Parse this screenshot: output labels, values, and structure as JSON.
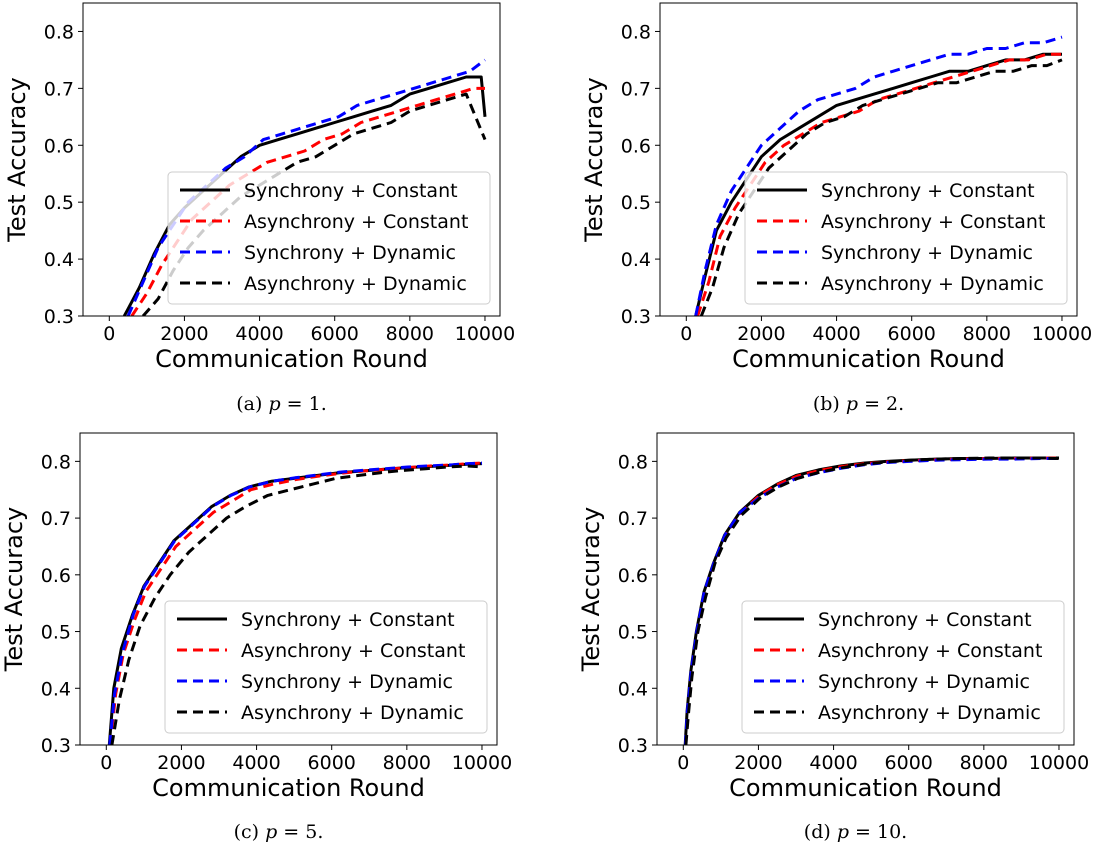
{
  "chart_data": [
    {
      "type": "line",
      "caption": "(a) p = 1.",
      "caption_prefix": "(a)",
      "caption_var": "p",
      "caption_eq": "= 1.",
      "xlabel": "Communication Round",
      "ylabel": "Test Accuracy",
      "xlim": [
        -700,
        10400
      ],
      "ylim": [
        0.3,
        0.85
      ],
      "xticks": [
        0,
        2000,
        4000,
        6000,
        8000,
        10000
      ],
      "yticks": [
        0.3,
        0.4,
        0.5,
        0.6,
        0.7,
        0.8
      ],
      "xtick_labels": [
        "0",
        "2000",
        "4000",
        "6000",
        "8000",
        "10000"
      ],
      "ytick_labels": [
        "0.3",
        "0.4",
        "0.5",
        "0.6",
        "0.7",
        "0.8"
      ],
      "legend_position": "lower-right",
      "series": [
        {
          "name": "Synchrony + Constant",
          "color": "#000000",
          "dash": "solid",
          "x": [
            400,
            800,
            1200,
            1600,
            2000,
            2500,
            3000,
            3500,
            4000,
            4500,
            5000,
            5500,
            6000,
            6500,
            7000,
            7500,
            8000,
            8500,
            9000,
            9500,
            9900,
            10000
          ],
          "y": [
            0.3,
            0.35,
            0.41,
            0.46,
            0.49,
            0.52,
            0.55,
            0.58,
            0.6,
            0.61,
            0.62,
            0.63,
            0.64,
            0.65,
            0.66,
            0.67,
            0.69,
            0.7,
            0.71,
            0.72,
            0.72,
            0.65
          ]
        },
        {
          "name": "Asynchrony + Constant",
          "color": "#ff0000",
          "dash": "dashed",
          "x": [
            600,
            1000,
            1400,
            1800,
            2200,
            2700,
            3200,
            3700,
            4200,
            4700,
            5200,
            5700,
            6200,
            6700,
            7200,
            7700,
            8200,
            8700,
            9200,
            9700,
            10000
          ],
          "y": [
            0.3,
            0.34,
            0.39,
            0.43,
            0.47,
            0.5,
            0.53,
            0.55,
            0.57,
            0.58,
            0.59,
            0.61,
            0.62,
            0.64,
            0.65,
            0.66,
            0.67,
            0.68,
            0.69,
            0.7,
            0.7
          ]
        },
        {
          "name": "Synchrony + Dynamic",
          "color": "#0000ff",
          "dash": "dashed",
          "x": [
            500,
            900,
            1300,
            1700,
            2100,
            2600,
            3100,
            3600,
            4100,
            4600,
            5100,
            5600,
            6100,
            6600,
            7100,
            7600,
            8100,
            8600,
            9100,
            9600,
            10000
          ],
          "y": [
            0.3,
            0.36,
            0.42,
            0.46,
            0.5,
            0.53,
            0.56,
            0.58,
            0.61,
            0.62,
            0.63,
            0.64,
            0.65,
            0.67,
            0.68,
            0.69,
            0.7,
            0.71,
            0.72,
            0.73,
            0.75
          ]
        },
        {
          "name": "Asynchrony + Dynamic",
          "color": "#000000",
          "dash": "dashed",
          "x": [
            900,
            1300,
            1700,
            2100,
            2500,
            3000,
            3500,
            4000,
            4500,
            5000,
            5500,
            6000,
            6500,
            7000,
            7500,
            8000,
            8500,
            9000,
            9500,
            10000
          ],
          "y": [
            0.3,
            0.33,
            0.38,
            0.42,
            0.45,
            0.48,
            0.51,
            0.53,
            0.55,
            0.57,
            0.58,
            0.6,
            0.62,
            0.63,
            0.64,
            0.66,
            0.67,
            0.68,
            0.69,
            0.61
          ]
        }
      ]
    },
    {
      "type": "line",
      "caption": "(b) p = 2.",
      "caption_prefix": "(b)",
      "caption_var": "p",
      "caption_eq": "= 2.",
      "xlabel": "Communication Round",
      "ylabel": "Test Accuracy",
      "xlim": [
        -700,
        10400
      ],
      "ylim": [
        0.3,
        0.85
      ],
      "xticks": [
        0,
        2000,
        4000,
        6000,
        8000,
        10000
      ],
      "yticks": [
        0.3,
        0.4,
        0.5,
        0.6,
        0.7,
        0.8
      ],
      "xtick_labels": [
        "0",
        "2000",
        "4000",
        "6000",
        "8000",
        "10000"
      ],
      "ytick_labels": [
        "0.3",
        "0.4",
        "0.5",
        "0.6",
        "0.7",
        "0.8"
      ],
      "legend_position": "lower-right",
      "series": [
        {
          "name": "Synchrony + Constant",
          "color": "#000000",
          "dash": "solid",
          "x": [
            250,
            500,
            800,
            1200,
            1600,
            2000,
            2500,
            3000,
            3500,
            4000,
            4500,
            5000,
            5500,
            6000,
            6500,
            7000,
            7500,
            8000,
            8500,
            9000,
            9500,
            10000
          ],
          "y": [
            0.3,
            0.37,
            0.45,
            0.5,
            0.54,
            0.58,
            0.61,
            0.63,
            0.65,
            0.67,
            0.68,
            0.69,
            0.7,
            0.71,
            0.72,
            0.73,
            0.73,
            0.74,
            0.75,
            0.75,
            0.76,
            0.76
          ]
        },
        {
          "name": "Asynchrony + Constant",
          "color": "#ff0000",
          "dash": "dashed",
          "x": [
            300,
            600,
            900,
            1300,
            1700,
            2100,
            2600,
            3100,
            3600,
            4100,
            4600,
            5100,
            5600,
            6100,
            6600,
            7100,
            7600,
            8100,
            8600,
            9100,
            9600,
            10000
          ],
          "y": [
            0.3,
            0.36,
            0.44,
            0.49,
            0.53,
            0.57,
            0.6,
            0.62,
            0.64,
            0.65,
            0.66,
            0.68,
            0.69,
            0.7,
            0.71,
            0.72,
            0.73,
            0.74,
            0.75,
            0.75,
            0.76,
            0.76
          ]
        },
        {
          "name": "Synchrony + Dynamic",
          "color": "#0000ff",
          "dash": "dashed",
          "x": [
            250,
            500,
            800,
            1200,
            1600,
            2000,
            2500,
            3000,
            3500,
            4000,
            4500,
            5000,
            5500,
            6000,
            6500,
            7000,
            7500,
            8000,
            8500,
            9000,
            9500,
            10000
          ],
          "y": [
            0.3,
            0.38,
            0.46,
            0.52,
            0.56,
            0.6,
            0.63,
            0.66,
            0.68,
            0.69,
            0.7,
            0.72,
            0.73,
            0.74,
            0.75,
            0.76,
            0.76,
            0.77,
            0.77,
            0.78,
            0.78,
            0.79
          ]
        },
        {
          "name": "Asynchrony + Dynamic",
          "color": "#000000",
          "dash": "dashed",
          "x": [
            400,
            700,
            1000,
            1400,
            1800,
            2200,
            2700,
            3200,
            3700,
            4200,
            4700,
            5200,
            5700,
            6200,
            6700,
            7200,
            7700,
            8200,
            8700,
            9200,
            9600,
            10000
          ],
          "y": [
            0.3,
            0.35,
            0.42,
            0.48,
            0.52,
            0.56,
            0.59,
            0.62,
            0.64,
            0.65,
            0.67,
            0.68,
            0.69,
            0.7,
            0.71,
            0.71,
            0.72,
            0.73,
            0.73,
            0.74,
            0.74,
            0.75
          ]
        }
      ]
    },
    {
      "type": "line",
      "caption": "(c) p = 5.",
      "caption_prefix": "(c)",
      "caption_var": "p",
      "caption_eq": "= 5.",
      "xlabel": "Communication Round",
      "ylabel": "Test Accuracy",
      "xlim": [
        -700,
        10400
      ],
      "ylim": [
        0.3,
        0.85
      ],
      "xticks": [
        0,
        2000,
        4000,
        6000,
        8000,
        10000
      ],
      "yticks": [
        0.3,
        0.4,
        0.5,
        0.6,
        0.7,
        0.8
      ],
      "xtick_labels": [
        "0",
        "2000",
        "4000",
        "6000",
        "8000",
        "10000"
      ],
      "ytick_labels": [
        "0.3",
        "0.4",
        "0.5",
        "0.6",
        "0.7",
        "0.8"
      ],
      "legend_position": "lower-right",
      "series": [
        {
          "name": "Synchrony + Constant",
          "color": "#000000",
          "dash": "solid",
          "x": [
            80,
            200,
            400,
            700,
            1000,
            1400,
            1800,
            2300,
            2800,
            3300,
            3800,
            4400,
            5000,
            5600,
            6200,
            6800,
            7400,
            8000,
            8600,
            9200,
            9600,
            10000
          ],
          "y": [
            0.3,
            0.4,
            0.47,
            0.53,
            0.58,
            0.62,
            0.66,
            0.69,
            0.72,
            0.74,
            0.755,
            0.765,
            0.77,
            0.775,
            0.78,
            0.783,
            0.786,
            0.789,
            0.791,
            0.793,
            0.795,
            0.796
          ]
        },
        {
          "name": "Asynchrony + Constant",
          "color": "#ff0000",
          "dash": "dashed",
          "x": [
            100,
            250,
            450,
            750,
            1050,
            1450,
            1850,
            2350,
            2850,
            3350,
            3850,
            4450,
            5050,
            5650,
            6250,
            6850,
            7450,
            8050,
            8650,
            9250,
            9650,
            10000
          ],
          "y": [
            0.3,
            0.39,
            0.46,
            0.52,
            0.57,
            0.61,
            0.65,
            0.68,
            0.71,
            0.73,
            0.75,
            0.76,
            0.768,
            0.774,
            0.779,
            0.783,
            0.786,
            0.789,
            0.792,
            0.794,
            0.796,
            0.797
          ]
        },
        {
          "name": "Synchrony + Dynamic",
          "color": "#0000ff",
          "dash": "dashed",
          "x": [
            90,
            220,
            420,
            720,
            1020,
            1420,
            1820,
            2320,
            2820,
            3320,
            3820,
            4420,
            5020,
            5620,
            6220,
            6820,
            7420,
            8020,
            8620,
            9220,
            9620,
            10000
          ],
          "y": [
            0.3,
            0.39,
            0.46,
            0.53,
            0.58,
            0.62,
            0.66,
            0.69,
            0.72,
            0.74,
            0.755,
            0.765,
            0.771,
            0.776,
            0.781,
            0.784,
            0.787,
            0.79,
            0.792,
            0.794,
            0.796,
            0.797
          ]
        },
        {
          "name": "Asynchrony + Dynamic",
          "color": "#000000",
          "dash": "dashed",
          "x": [
            150,
            350,
            600,
            900,
            1300,
            1700,
            2200,
            2700,
            3200,
            3700,
            4300,
            4900,
            5500,
            6100,
            6700,
            7300,
            7900,
            8500,
            9100,
            9600,
            10000
          ],
          "y": [
            0.3,
            0.38,
            0.45,
            0.51,
            0.56,
            0.6,
            0.64,
            0.67,
            0.7,
            0.72,
            0.74,
            0.75,
            0.76,
            0.77,
            0.775,
            0.78,
            0.784,
            0.787,
            0.79,
            0.792,
            0.79
          ]
        }
      ]
    },
    {
      "type": "line",
      "caption": "(d) p = 10.",
      "caption_prefix": "(d)",
      "caption_var": "p",
      "caption_eq": "= 10.",
      "xlabel": "Communication Round",
      "ylabel": "Test Accuracy",
      "xlim": [
        -700,
        10400
      ],
      "ylim": [
        0.3,
        0.85
      ],
      "xticks": [
        0,
        2000,
        4000,
        6000,
        8000,
        10000
      ],
      "yticks": [
        0.3,
        0.4,
        0.5,
        0.6,
        0.7,
        0.8
      ],
      "xtick_labels": [
        "0",
        "2000",
        "4000",
        "6000",
        "8000",
        "10000"
      ],
      "ytick_labels": [
        "0.3",
        "0.4",
        "0.5",
        "0.6",
        "0.7",
        "0.8"
      ],
      "legend_position": "lower-right",
      "series": [
        {
          "name": "Synchrony + Constant",
          "color": "#000000",
          "dash": "solid",
          "x": [
            50,
            100,
            200,
            350,
            550,
            800,
            1100,
            1500,
            2000,
            2500,
            3000,
            3600,
            4200,
            4800,
            5400,
            6000,
            6700,
            7400,
            8100,
            8800,
            9500,
            10000
          ],
          "y": [
            0.3,
            0.36,
            0.43,
            0.5,
            0.57,
            0.62,
            0.67,
            0.71,
            0.74,
            0.76,
            0.775,
            0.785,
            0.792,
            0.797,
            0.8,
            0.802,
            0.804,
            0.805,
            0.805,
            0.806,
            0.806,
            0.806
          ]
        },
        {
          "name": "Asynchrony + Constant",
          "color": "#ff0000",
          "dash": "dashed",
          "x": [
            60,
            120,
            220,
            380,
            580,
            830,
            1130,
            1530,
            2030,
            2530,
            3030,
            3630,
            4230,
            4830,
            5430,
            6030,
            6730,
            7430,
            8130,
            8830,
            9530,
            10000
          ],
          "y": [
            0.3,
            0.36,
            0.43,
            0.5,
            0.57,
            0.62,
            0.67,
            0.71,
            0.74,
            0.76,
            0.774,
            0.784,
            0.791,
            0.796,
            0.799,
            0.801,
            0.803,
            0.804,
            0.805,
            0.805,
            0.806,
            0.806
          ]
        },
        {
          "name": "Synchrony + Dynamic",
          "color": "#0000ff",
          "dash": "dashed",
          "x": [
            55,
            110,
            210,
            360,
            560,
            810,
            1110,
            1510,
            2010,
            2510,
            3010,
            3610,
            4210,
            4810,
            5410,
            6010,
            6710,
            7410,
            8110,
            8810,
            9510,
            10000
          ],
          "y": [
            0.3,
            0.36,
            0.43,
            0.5,
            0.57,
            0.62,
            0.67,
            0.71,
            0.735,
            0.755,
            0.77,
            0.78,
            0.788,
            0.794,
            0.798,
            0.8,
            0.802,
            0.803,
            0.804,
            0.804,
            0.805,
            0.805
          ]
        },
        {
          "name": "Asynchrony + Dynamic",
          "color": "#000000",
          "dash": "dashed",
          "x": [
            70,
            130,
            230,
            390,
            590,
            840,
            1140,
            1540,
            2040,
            2540,
            3040,
            3640,
            4240,
            4840,
            5440,
            6040,
            6740,
            7440,
            8140,
            8840,
            9540,
            10000
          ],
          "y": [
            0.3,
            0.35,
            0.42,
            0.5,
            0.56,
            0.62,
            0.665,
            0.705,
            0.735,
            0.755,
            0.77,
            0.781,
            0.789,
            0.795,
            0.799,
            0.802,
            0.804,
            0.805,
            0.806,
            0.806,
            0.806,
            0.805
          ]
        }
      ]
    }
  ]
}
